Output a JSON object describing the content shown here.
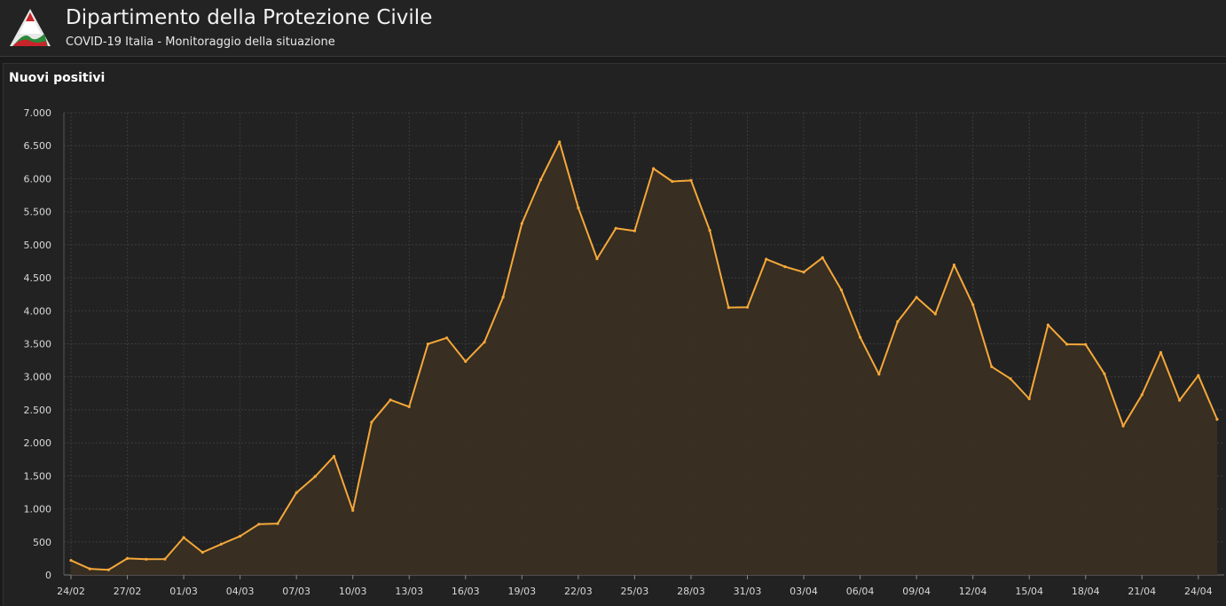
{
  "header": {
    "title": "Dipartimento della Protezione Civile",
    "subtitle": "COVID-19 Italia - Monitoraggio della situazione",
    "logo_icon": "protezione-civile-logo"
  },
  "panel": {
    "title": "Nuovi positivi"
  },
  "colors": {
    "line": "#f5a83a",
    "area": "#3a2f22",
    "grid": "#3c3c3c",
    "text": "#d8d8d8"
  },
  "chart_data": {
    "type": "area",
    "title": "Nuovi positivi",
    "xlabel": "",
    "ylabel": "",
    "ylim": [
      0,
      7000
    ],
    "yticks": [
      0,
      500,
      1000,
      1500,
      2000,
      2500,
      3000,
      3500,
      4000,
      4500,
      5000,
      5500,
      6000,
      6500,
      7000
    ],
    "ytick_labels": [
      "0",
      "500",
      "1.000",
      "1.500",
      "2.000",
      "2.500",
      "3.000",
      "3.500",
      "4.000",
      "4.500",
      "5.000",
      "5.500",
      "6.000",
      "6.500",
      "7.000"
    ],
    "grid": true,
    "xtick_labels": [
      "24/02",
      "27/02",
      "01/03",
      "04/03",
      "07/03",
      "10/03",
      "13/03",
      "16/03",
      "19/03",
      "22/03",
      "25/03",
      "28/03",
      "31/03",
      "03/04",
      "06/04",
      "09/04",
      "12/04",
      "15/04",
      "18/04",
      "21/04",
      "24/04"
    ],
    "xtick_every": 3,
    "categories": [
      "24/02",
      "25/02",
      "26/02",
      "27/02",
      "28/02",
      "29/02",
      "01/03",
      "02/03",
      "03/03",
      "04/03",
      "05/03",
      "06/03",
      "07/03",
      "08/03",
      "09/03",
      "10/03",
      "11/03",
      "12/03",
      "13/03",
      "14/03",
      "15/03",
      "16/03",
      "17/03",
      "18/03",
      "19/03",
      "20/03",
      "21/03",
      "22/03",
      "23/03",
      "24/03",
      "25/03",
      "26/03",
      "27/03",
      "28/03",
      "29/03",
      "30/03",
      "31/03",
      "01/04",
      "02/04",
      "03/04",
      "04/04",
      "05/04",
      "06/04",
      "07/04",
      "08/04",
      "09/04",
      "10/04",
      "11/04",
      "12/04",
      "13/04",
      "14/04",
      "15/04",
      "16/04",
      "17/04",
      "18/04",
      "19/04",
      "20/04",
      "21/04",
      "22/04",
      "23/04",
      "24/04",
      "25/04"
    ],
    "series": [
      {
        "values": [
          221,
          93,
          78,
          250,
          238,
          240,
          566,
          342,
          466,
          587,
          769,
          778,
          1247,
          1492,
          1797,
          977,
          2313,
          2651,
          2547,
          3497,
          3590,
          3233,
          3526,
          4207,
          5322,
          5986,
          6557,
          5560,
          4789,
          5249,
          5210,
          6153,
          5959,
          5974,
          5217,
          4050,
          4053,
          4782,
          4668,
          4585,
          4805,
          4316,
          3599,
          3039,
          3836,
          4204,
          3951,
          4694,
          4092,
          3153,
          2972,
          2667,
          3786,
          3493,
          3491,
          3047,
          2256,
          2729,
          3370,
          2646,
          3021,
          2357
        ]
      }
    ]
  }
}
